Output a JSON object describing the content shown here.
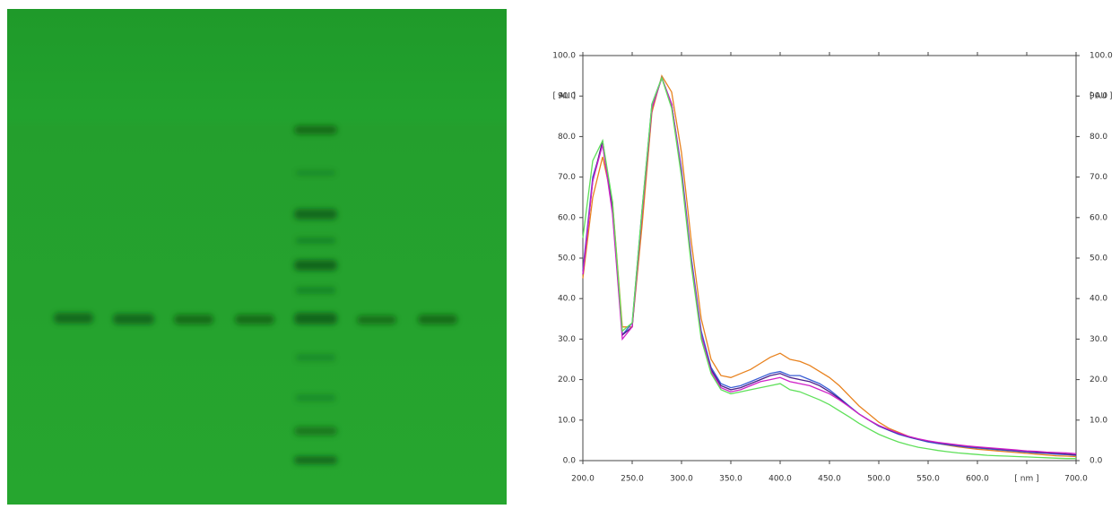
{
  "chart_data": {
    "type": "line",
    "x": [
      200,
      210,
      220,
      230,
      240,
      250,
      260,
      270,
      280,
      290,
      300,
      310,
      320,
      330,
      340,
      350,
      360,
      370,
      380,
      390,
      400,
      410,
      420,
      430,
      440,
      450,
      460,
      470,
      480,
      490,
      500,
      510,
      520,
      530,
      540,
      550,
      560,
      570,
      580,
      590,
      600,
      610,
      620,
      630,
      640,
      650,
      660,
      670,
      680,
      690,
      700
    ],
    "series": [
      {
        "color": "#e8821e",
        "values": [
          45,
          65,
          75,
          64,
          33,
          33,
          58,
          86,
          95,
          91,
          76,
          54,
          35,
          25,
          21,
          20.5,
          21.5,
          22.5,
          24,
          25.5,
          26.5,
          25,
          24.5,
          23.5,
          22,
          20.5,
          18.5,
          16,
          13.5,
          11.5,
          9.5,
          8,
          7,
          6,
          5.3,
          4.7,
          4.2,
          3.8,
          3.4,
          3.1,
          2.8,
          2.6,
          2.4,
          2.2,
          2,
          1.8,
          1.6,
          1.4,
          1.2,
          1.1,
          1
        ]
      },
      {
        "color": "#3b5fd6",
        "values": [
          47,
          70,
          78,
          62,
          31,
          34,
          62,
          88,
          94.5,
          88,
          72,
          50,
          32,
          23,
          19,
          18,
          18.5,
          19.5,
          20.5,
          21.5,
          22,
          21,
          21,
          20,
          19,
          17.5,
          15.5,
          13.5,
          11.5,
          10,
          8.5,
          7.5,
          6.5,
          5.8,
          5.2,
          4.6,
          4.2,
          3.9,
          3.6,
          3.3,
          3.1,
          2.9,
          2.7,
          2.5,
          2.3,
          2.1,
          1.9,
          1.8,
          1.6,
          1.5,
          1.3
        ]
      },
      {
        "color": "#4b1f8a",
        "values": [
          46,
          69,
          79,
          62,
          31,
          33,
          61,
          87,
          94.5,
          88,
          71,
          49,
          31,
          22.5,
          18.5,
          17.5,
          18,
          19,
          20,
          21,
          21.5,
          20.5,
          20,
          19.5,
          18.5,
          17,
          15.3,
          13.3,
          11.5,
          10,
          8.6,
          7.6,
          6.7,
          5.9,
          5.3,
          4.8,
          4.4,
          4.1,
          3.8,
          3.5,
          3.3,
          3.1,
          2.9,
          2.7,
          2.5,
          2.3,
          2.1,
          1.9,
          1.8,
          1.6,
          1.4
        ]
      },
      {
        "color": "#d020c8",
        "values": [
          46,
          69,
          78,
          61,
          30,
          33,
          61,
          87,
          94.5,
          88,
          71,
          49,
          31,
          22,
          18,
          17,
          17.5,
          18.5,
          19.5,
          20,
          20.5,
          19.5,
          19,
          18.5,
          17.5,
          16.5,
          15,
          13.3,
          11.5,
          10,
          8.7,
          7.7,
          6.8,
          6,
          5.4,
          4.9,
          4.5,
          4.2,
          3.9,
          3.6,
          3.4,
          3.2,
          3,
          2.8,
          2.6,
          2.4,
          2.3,
          2.1,
          2,
          1.9,
          1.7
        ]
      },
      {
        "color": "#5fe05a",
        "values": [
          55,
          74,
          79,
          64,
          32,
          34,
          62,
          88,
          94.5,
          87,
          70,
          48,
          30,
          21.5,
          17.5,
          16.5,
          17,
          17.5,
          18,
          18.5,
          19,
          17.5,
          17,
          16,
          15,
          13.8,
          12.3,
          10.8,
          9.2,
          7.8,
          6.5,
          5.5,
          4.6,
          3.9,
          3.3,
          2.9,
          2.5,
          2.2,
          1.9,
          1.7,
          1.5,
          1.3,
          1.2,
          1.1,
          1,
          0.9,
          0.8,
          0.7,
          0.6,
          0.5,
          0.5
        ]
      }
    ],
    "ylabel": "[ AU ]",
    "xlim": [
      200,
      700
    ],
    "ylim": [
      0,
      100
    ],
    "xticks": [
      {
        "value": 200,
        "label": "200.0"
      },
      {
        "value": 250,
        "label": "250.0"
      },
      {
        "value": 300,
        "label": "300.0"
      },
      {
        "value": 350,
        "label": "350.0"
      },
      {
        "value": 400,
        "label": "400.0"
      },
      {
        "value": 450,
        "label": "450.0"
      },
      {
        "value": 500,
        "label": "500.0"
      },
      {
        "value": 550,
        "label": "550.0"
      },
      {
        "value": 600,
        "label": "600.0"
      },
      {
        "value": 650,
        "label": "[ nm ]"
      },
      {
        "value": 700,
        "label": "700.0"
      }
    ],
    "yticks": [
      {
        "value": 0,
        "label": "0.0"
      },
      {
        "value": 10,
        "label": "10.0"
      },
      {
        "value": 20,
        "label": "20.0"
      },
      {
        "value": 30,
        "label": "30.0"
      },
      {
        "value": 40,
        "label": "40.0"
      },
      {
        "value": 50,
        "label": "50.0"
      },
      {
        "value": 60,
        "label": "60.0"
      },
      {
        "value": 70,
        "label": "70.0"
      },
      {
        "value": 80,
        "label": "80.0"
      },
      {
        "value": 90,
        "label": "90.0"
      },
      {
        "value": 100,
        "label": "100.0"
      }
    ]
  }
}
